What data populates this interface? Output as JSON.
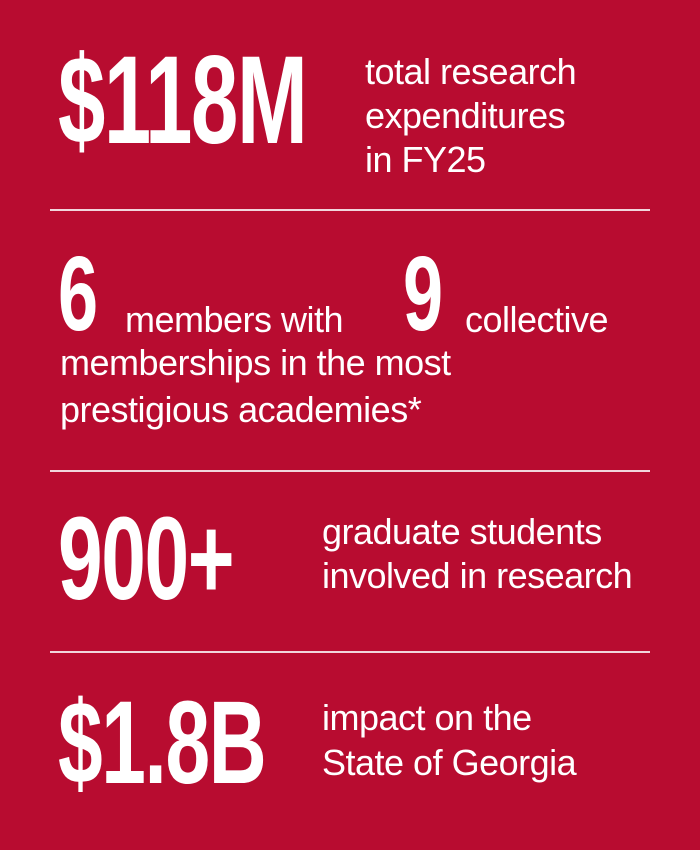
{
  "stats": [
    {
      "value": "$118M",
      "lines": [
        "total research",
        "expenditures",
        "in FY25"
      ]
    },
    {
      "value_a": "6",
      "text_a": "members with",
      "value_b": "9",
      "text_b": "collective",
      "lines": [
        "memberships in the most",
        "prestigious academies*"
      ]
    },
    {
      "value": "900+",
      "lines": [
        "graduate students",
        "involved in research"
      ]
    },
    {
      "value": "$1.8B",
      "lines": [
        "impact on the",
        "State of Georgia"
      ]
    }
  ],
  "colors": {
    "background": "#B80C30",
    "text": "#FFFFFF"
  }
}
